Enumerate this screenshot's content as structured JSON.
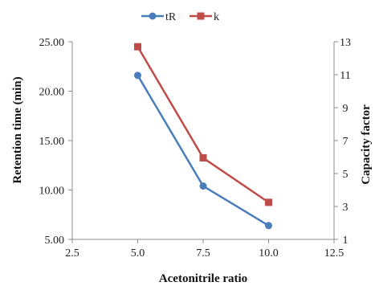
{
  "chart_data": {
    "type": "line",
    "title": "",
    "xlabel": "Acetonitrile ratio",
    "ylabel": "Retention time (min)",
    "y2label": "Capacity factor",
    "xlim": [
      2.5,
      12.5
    ],
    "ylim": [
      5.0,
      25.0
    ],
    "y2lim": [
      1,
      13
    ],
    "x_ticks": [
      "2.5",
      "5.0",
      "7.5",
      "10.0",
      "12.5"
    ],
    "y_ticks": [
      "5.00",
      "10.00",
      "15.00",
      "20.00",
      "25.00"
    ],
    "y2_ticks": [
      "1",
      "3",
      "5",
      "7",
      "9",
      "11",
      "13"
    ],
    "grid": false,
    "legend_position": "top-center",
    "series": [
      {
        "name": "tR",
        "axis": "left",
        "marker": "circle",
        "color": "#4a7ebb",
        "x": [
          5.0,
          7.5,
          10.0
        ],
        "y": [
          21.6,
          10.4,
          6.4
        ]
      },
      {
        "name": "k",
        "axis": "right",
        "marker": "square",
        "color": "#be4b48",
        "x": [
          5.0,
          7.5,
          10.0
        ],
        "y": [
          12.7,
          5.95,
          3.25
        ]
      }
    ]
  }
}
